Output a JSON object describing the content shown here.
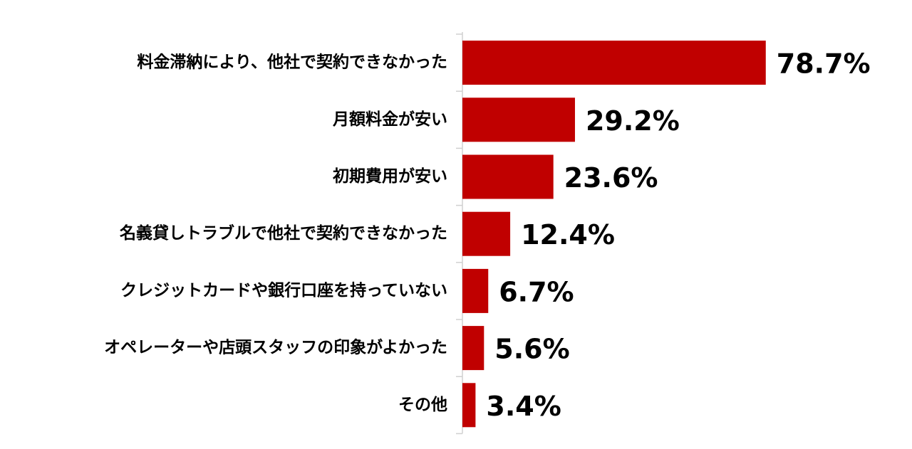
{
  "chart_data": {
    "type": "barh",
    "categories": [
      "料金滞納により、他社で契約できなかった",
      "月額料金が安い",
      "初期費用が安い",
      "名義貸しトラブルで他社で契約できなかった",
      "クレジットカードや銀行口座を持っていない",
      "オペレーターや店頭スタッフの印象がよかった",
      "その他"
    ],
    "values": [
      78.7,
      29.2,
      23.6,
      12.4,
      6.7,
      5.6,
      3.4
    ],
    "value_labels": [
      "78.7%",
      "29.2%",
      "23.6%",
      "12.4%",
      "6.7%",
      "5.6%",
      "3.4%"
    ],
    "color": "#c00000",
    "xlim": [
      0,
      100
    ]
  }
}
